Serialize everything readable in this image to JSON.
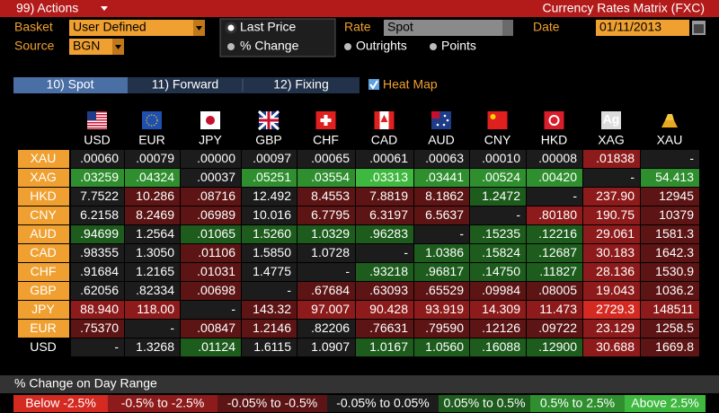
{
  "header": {
    "actions": "99) Actions",
    "title": "Currency Rates Matrix (FXC)"
  },
  "controls": {
    "basket_label": "Basket",
    "basket": "User Defined",
    "source_label": "Source",
    "source": "BGN",
    "price_options": [
      "Last Price",
      "% Change"
    ],
    "rate_label": "Rate",
    "rate": "Spot",
    "rate_options": [
      "Outrights",
      "Points"
    ],
    "date_label": "Date",
    "date": "01/11/2013"
  },
  "tabs": [
    "10) Spot",
    "11) Forward",
    "12) Fixing"
  ],
  "heat_map": "Heat Map",
  "matrix": {
    "columns": [
      "USD",
      "EUR",
      "JPY",
      "GBP",
      "CHF",
      "CAD",
      "AUD",
      "CNY",
      "HKD",
      "XAG",
      "XAU"
    ],
    "metal_icon": "Ag",
    "rows": [
      {
        "label": "XAU",
        "label_color": "#f0a030",
        "cells": [
          ".00060",
          ".00079",
          ".00000",
          ".00097",
          ".00065",
          ".00061",
          ".00063",
          ".00010",
          ".00008",
          ".01838",
          "-"
        ],
        "colors": [
          "#1c1c1c",
          "#1c1c1c",
          "#1c1c1c",
          "#1c1c1c",
          "#1c1c1c",
          "#1c1c1c",
          "#1c1c1c",
          "#1c1c1c",
          "#1c1c1c",
          "#8e1b1b",
          "#1c1c1c"
        ]
      },
      {
        "label": "XAG",
        "label_color": "#f0a030",
        "cells": [
          ".03259",
          ".04324",
          ".00037",
          ".05251",
          ".03554",
          ".03313",
          ".03441",
          ".00524",
          ".00420",
          "-",
          "54.413"
        ],
        "colors": [
          "#2f8f2f",
          "#2f8f2f",
          "#1c1c1c",
          "#2f8f2f",
          "#2f8f2f",
          "#3fb83f",
          "#2f8f2f",
          "#2f8f2f",
          "#2f8f2f",
          "#1c1c1c",
          "#2f8f2f"
        ]
      },
      {
        "label": "HKD",
        "label_color": "#f0a030",
        "cells": [
          "7.7522",
          "10.286",
          ".08716",
          "12.492",
          "8.4553",
          "7.8819",
          "8.1862",
          "1.2472",
          "-",
          "237.90",
          "12945"
        ],
        "colors": [
          "#1c1c1c",
          "#5c1414",
          "#5c1414",
          "#1c1c1c",
          "#5c1414",
          "#5c1414",
          "#5c1414",
          "#1d5c1d",
          "#1c1c1c",
          "#8e1b1b",
          "#5c1414"
        ]
      },
      {
        "label": "CNY",
        "label_color": "#f0a030",
        "cells": [
          "6.2158",
          "8.2469",
          ".06989",
          "10.016",
          "6.7795",
          "6.3197",
          "6.5637",
          "-",
          ".80180",
          "190.75",
          "10379"
        ],
        "colors": [
          "#1c1c1c",
          "#5c1414",
          "#5c1414",
          "#1c1c1c",
          "#5c1414",
          "#5c1414",
          "#5c1414",
          "#1c1c1c",
          "#8e1b1b",
          "#8e1b1b",
          "#5c1414"
        ]
      },
      {
        "label": "AUD",
        "label_color": "#f0a030",
        "cells": [
          ".94699",
          "1.2564",
          ".01065",
          "1.5260",
          "1.0329",
          ".96283",
          "-",
          ".15235",
          ".12216",
          "29.061",
          "1581.3"
        ],
        "colors": [
          "#1d5c1d",
          "#1c1c1c",
          "#1d5c1d",
          "#1d5c1d",
          "#1d5c1d",
          "#1d5c1d",
          "#1c1c1c",
          "#1d5c1d",
          "#1d5c1d",
          "#8e1b1b",
          "#5c1414"
        ]
      },
      {
        "label": "CAD",
        "label_color": "#f0a030",
        "cells": [
          ".98355",
          "1.3050",
          ".01106",
          "1.5850",
          "1.0728",
          "-",
          "1.0386",
          ".15824",
          ".12687",
          "30.183",
          "1642.3"
        ],
        "colors": [
          "#1c1c1c",
          "#1c1c1c",
          "#5c1414",
          "#1c1c1c",
          "#1c1c1c",
          "#1c1c1c",
          "#1d5c1d",
          "#1d5c1d",
          "#1d5c1d",
          "#8e1b1b",
          "#5c1414"
        ]
      },
      {
        "label": "CHF",
        "label_color": "#f0a030",
        "cells": [
          ".91684",
          "1.2165",
          ".01031",
          "1.4775",
          "-",
          ".93218",
          ".96817",
          ".14750",
          ".11827",
          "28.136",
          "1530.9"
        ],
        "colors": [
          "#1c1c1c",
          "#1c1c1c",
          "#5c1414",
          "#1c1c1c",
          "#1c1c1c",
          "#1d5c1d",
          "#1d5c1d",
          "#1d5c1d",
          "#1d5c1d",
          "#8e1b1b",
          "#5c1414"
        ]
      },
      {
        "label": "GBP",
        "label_color": "#f0a030",
        "cells": [
          ".62056",
          ".82334",
          ".00698",
          "-",
          ".67684",
          ".63093",
          ".65529",
          ".09984",
          ".08005",
          "19.043",
          "1036.2"
        ],
        "colors": [
          "#1c1c1c",
          "#1c1c1c",
          "#5c1414",
          "#1c1c1c",
          "#5c1414",
          "#5c1414",
          "#5c1414",
          "#5c1414",
          "#5c1414",
          "#8e1b1b",
          "#5c1414"
        ]
      },
      {
        "label": "JPY",
        "label_color": "#f0a030",
        "cells": [
          "88.940",
          "118.00",
          "-",
          "143.32",
          "97.007",
          "90.428",
          "93.919",
          "14.309",
          "11.473",
          "2729.3",
          "148511"
        ],
        "colors": [
          "#8e1b1b",
          "#8e1b1b",
          "#1c1c1c",
          "#5c1414",
          "#8e1b1b",
          "#8e1b1b",
          "#8e1b1b",
          "#8e1b1b",
          "#8e1b1b",
          "#d42a22",
          "#8e1b1b"
        ]
      },
      {
        "label": "EUR",
        "label_color": "#f0a030",
        "cells": [
          ".75370",
          "-",
          ".00847",
          "1.2146",
          ".82206",
          ".76631",
          ".79590",
          ".12126",
          ".09722",
          "23.129",
          "1258.5"
        ],
        "colors": [
          "#5c1414",
          "#1c1c1c",
          "#5c1414",
          "#5c1414",
          "#1c1c1c",
          "#5c1414",
          "#5c1414",
          "#5c1414",
          "#5c1414",
          "#8e1b1b",
          "#5c1414"
        ]
      },
      {
        "label": "USD",
        "label_color": "#000000",
        "cells": [
          "-",
          "1.3268",
          ".01124",
          "1.6115",
          "1.0907",
          "1.0167",
          "1.0560",
          ".16088",
          ".12900",
          "30.688",
          "1669.8"
        ],
        "colors": [
          "#1c1c1c",
          "#1c1c1c",
          "#1d5c1d",
          "#1c1c1c",
          "#1c1c1c",
          "#1d5c1d",
          "#1d5c1d",
          "#1d5c1d",
          "#1d5c1d",
          "#8e1b1b",
          "#5c1414"
        ]
      }
    ]
  },
  "legend": {
    "title": "% Change on Day Range",
    "ranges": [
      {
        "label": "Below -2.5%",
        "color": "#d42a22"
      },
      {
        "label": "-0.5% to -2.5%",
        "color": "#8e1b1b"
      },
      {
        "label": "-0.05% to -0.5%",
        "color": "#5c1414"
      },
      {
        "label": "-0.05% to 0.05%",
        "color": "#1c1c1c"
      },
      {
        "label": "0.05% to 0.5%",
        "color": "#1d5c1d"
      },
      {
        "label": "0.5% to 2.5%",
        "color": "#2f8f2f"
      },
      {
        "label": "Above 2.5%",
        "color": "#3fb83f"
      }
    ]
  }
}
